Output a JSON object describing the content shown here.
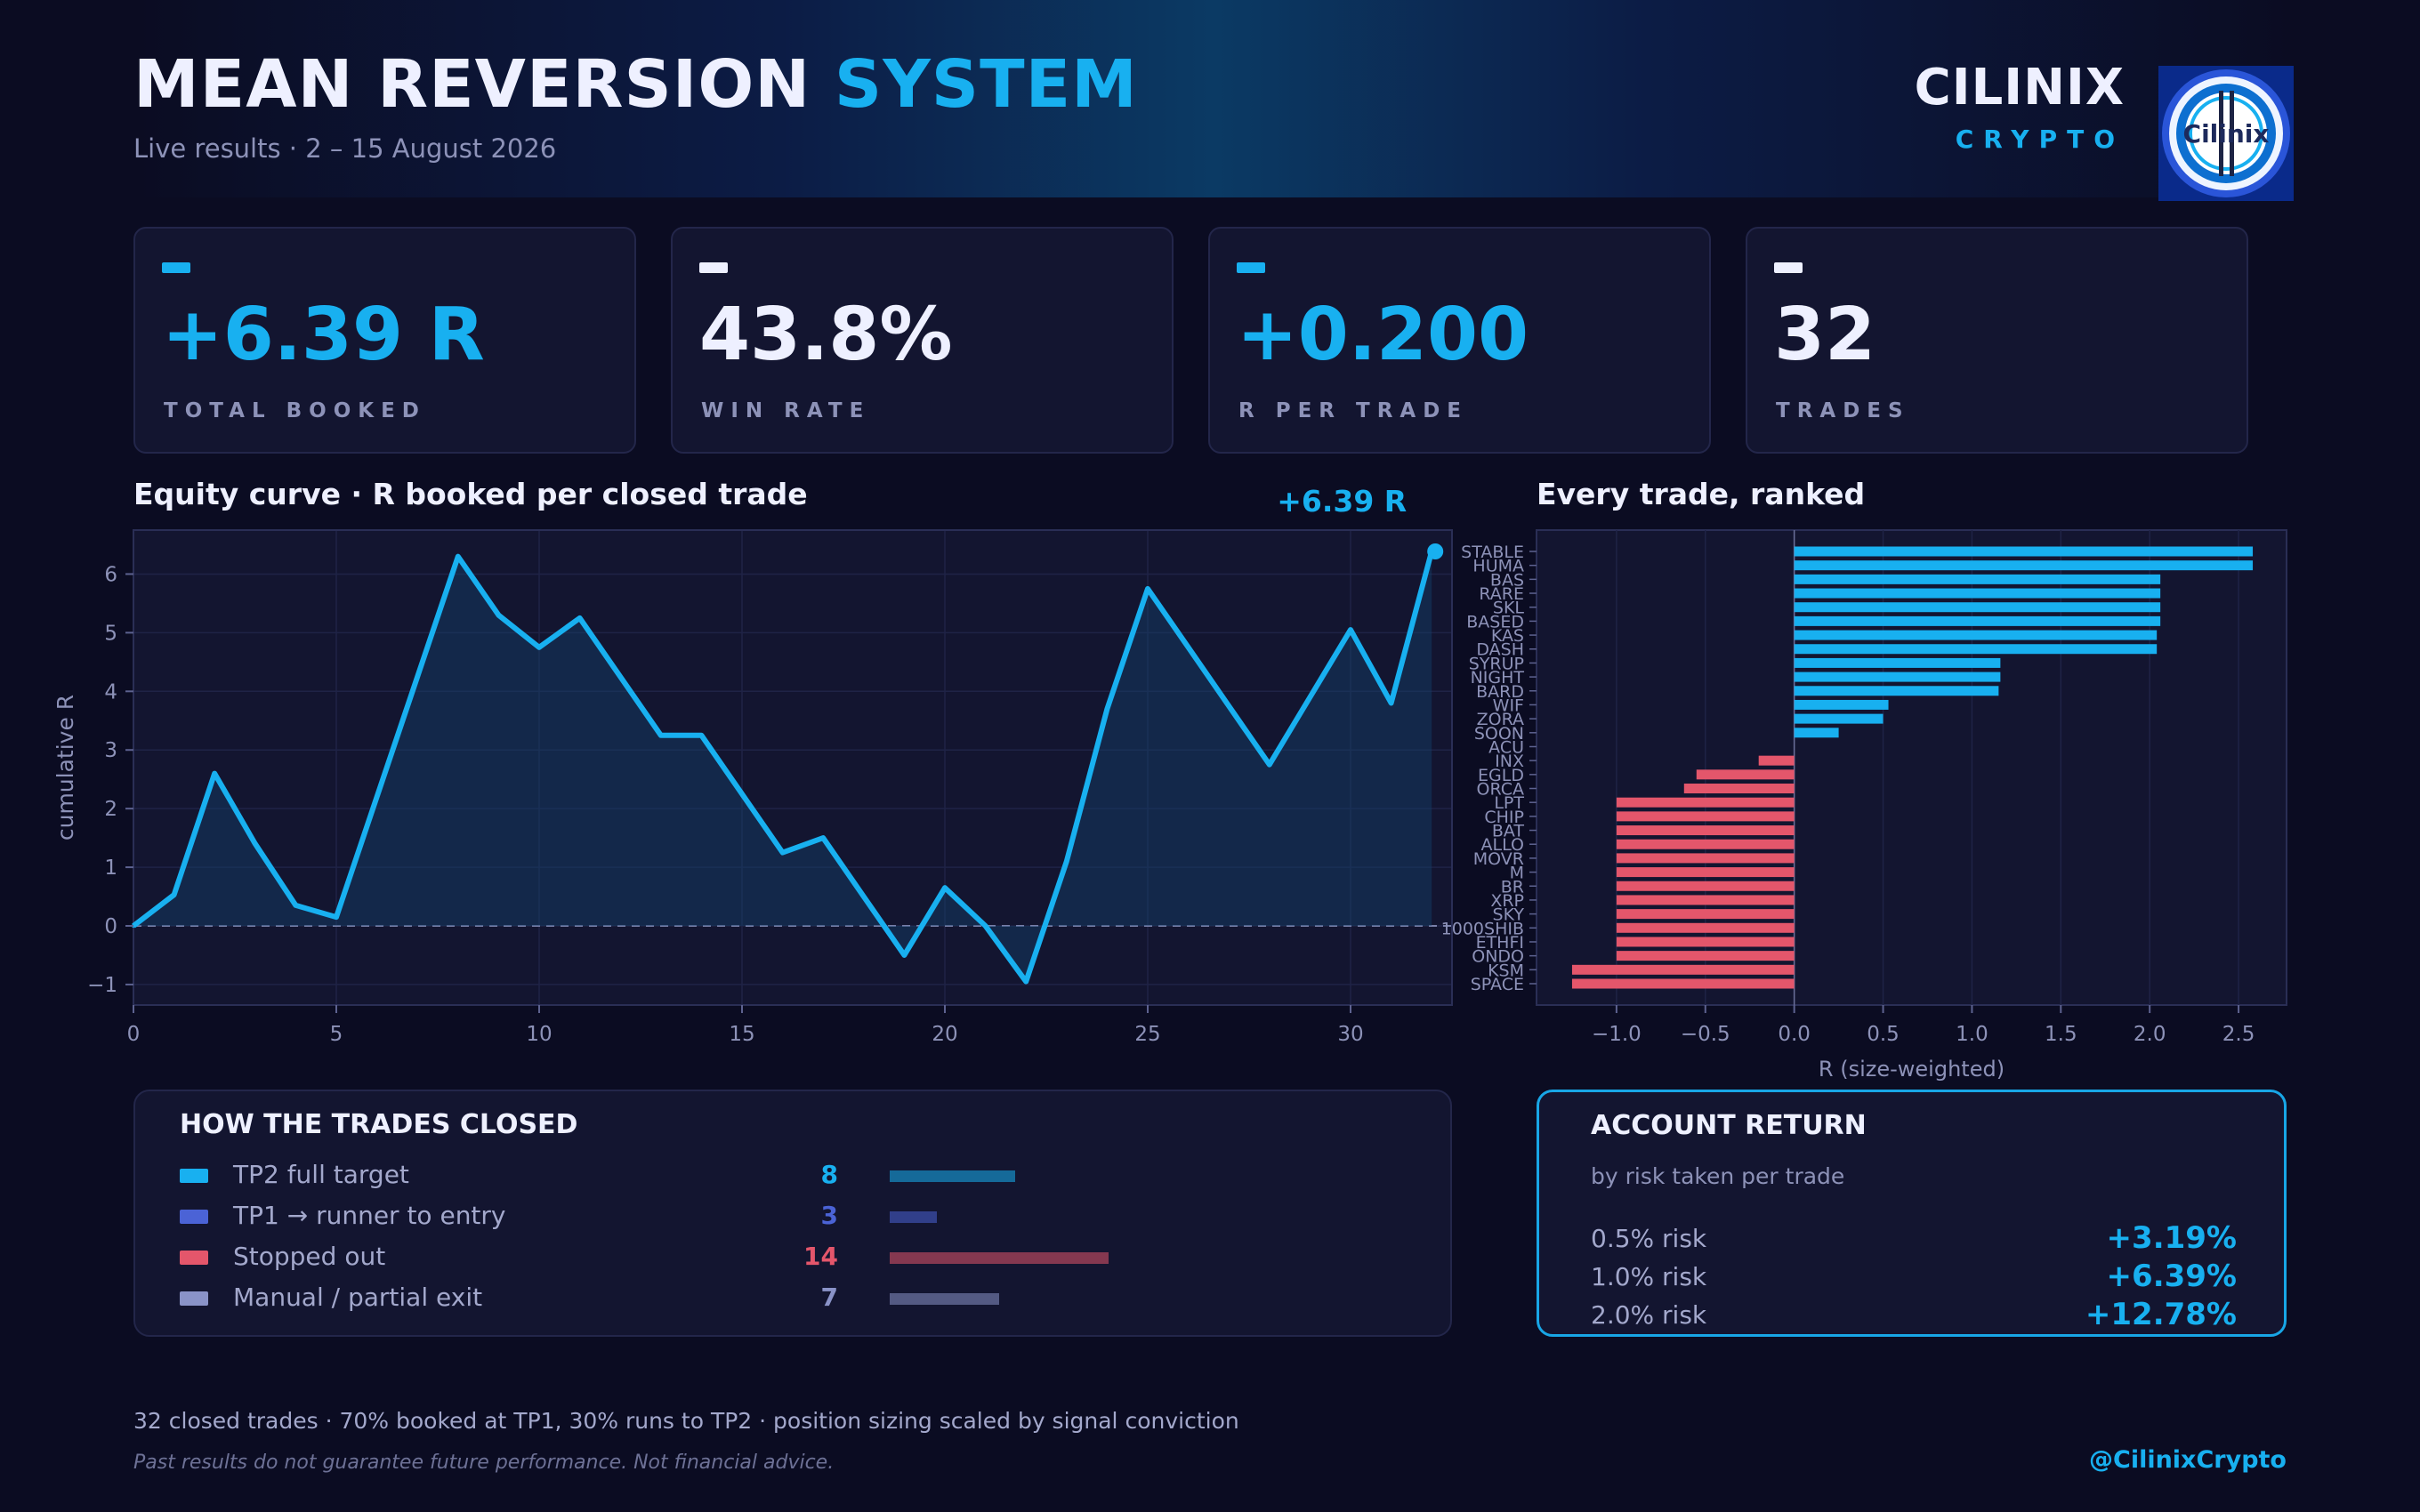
{
  "header": {
    "title_part1": "MEAN REVERSION",
    "title_part2": "SYSTEM",
    "subtitle": "Live results  ·  2 – 15 August 2026",
    "brand_name": "CILINIX",
    "brand_sub": "CRYPTO",
    "logo_text": "Cilinix"
  },
  "kpis": [
    {
      "value": "+6.39 R",
      "label": "TOTAL BOOKED",
      "color": "#18b0f0"
    },
    {
      "value": "43.8%",
      "label": "WIN RATE",
      "color": "#eef0ff"
    },
    {
      "value": "+0.200",
      "label": "R PER TRADE",
      "color": "#18b0f0"
    },
    {
      "value": "32",
      "label": "TRADES",
      "color": "#eef0ff"
    }
  ],
  "colors": {
    "accent": "#18b0f0",
    "loss": "#e4566b",
    "runner": "#4b63d6",
    "manual": "#8a93c8",
    "panel": "#131530",
    "background": "#0b0c22"
  },
  "chart_data": [
    {
      "type": "line",
      "title": "Equity curve  ·  R booked per closed trade",
      "ylabel": "cumulative R",
      "xlabel": "",
      "x": [
        0,
        1,
        2,
        3,
        4,
        5,
        6,
        7,
        8,
        9,
        10,
        11,
        12,
        13,
        14,
        15,
        16,
        17,
        18,
        19,
        20,
        21,
        22,
        23,
        24,
        25,
        26,
        27,
        28,
        29,
        30,
        31,
        32
      ],
      "y": [
        0,
        0.53,
        2.6,
        1.4,
        0.35,
        0.15,
        2.2,
        4.25,
        6.3,
        5.3,
        4.75,
        5.25,
        4.25,
        3.25,
        3.25,
        2.25,
        1.25,
        1.5,
        0.5,
        -0.5,
        0.65,
        0.0,
        -0.95,
        1.1,
        3.7,
        5.75,
        4.75,
        3.75,
        2.75,
        3.9,
        5.05,
        3.8,
        6.39
      ],
      "xlim": [
        0,
        32.5
      ],
      "ylim": [
        -1.35,
        6.75
      ],
      "xticks": [
        0,
        5,
        10,
        15,
        20,
        25,
        30
      ],
      "yticks": [
        -1,
        0,
        1,
        2,
        3,
        4,
        5,
        6
      ],
      "end_label": "+6.39 R",
      "zero_line": true,
      "grid": true
    },
    {
      "type": "bar",
      "orientation": "horizontal",
      "title": "Every trade, ranked",
      "xlabel": "R (size-weighted)",
      "ylabel": "",
      "categories": [
        "STABLE",
        "HUMA",
        "BAS",
        "RARE",
        "SKL",
        "BASED",
        "KAS",
        "DASH",
        "SYRUP",
        "NIGHT",
        "BARD",
        "WIF",
        "ZORA",
        "SOON",
        "ACU",
        "INX",
        "EGLD",
        "ORCA",
        "LPT",
        "CHIP",
        "BAT",
        "ALLO",
        "MOVR",
        "M",
        "BR",
        "XRP",
        "SKY",
        "1000SHIB",
        "ETHFI",
        "ONDO",
        "KSM",
        "SPACE"
      ],
      "values": [
        2.58,
        2.58,
        2.06,
        2.06,
        2.06,
        2.06,
        2.04,
        2.04,
        1.16,
        1.16,
        1.15,
        0.53,
        0.5,
        0.25,
        0.0,
        -0.2,
        -0.55,
        -0.62,
        -1.0,
        -1.0,
        -1.0,
        -1.0,
        -1.0,
        -1.0,
        -1.0,
        -1.0,
        -1.0,
        -1.0,
        -1.0,
        -1.0,
        -1.25,
        -1.25
      ],
      "xlim": [
        -1.45,
        2.77
      ],
      "xticks": [
        -1.0,
        -0.5,
        0.0,
        0.5,
        1.0,
        1.5,
        2.0,
        2.5
      ],
      "xtick_labels": [
        "−1.0",
        "−0.5",
        "0.0",
        "0.5",
        "1.0",
        "1.5",
        "2.0",
        "2.5"
      ],
      "grid": true
    }
  ],
  "how_closed": {
    "title": "HOW THE TRADES CLOSED",
    "rows": [
      {
        "label": "TP2 full target",
        "count": "8",
        "n": 8,
        "color": "#18b0f0"
      },
      {
        "label": "TP1 → runner to entry",
        "count": "3",
        "n": 3,
        "color": "#4b63d6"
      },
      {
        "label": "Stopped out",
        "count": "14",
        "n": 14,
        "color": "#e4566b"
      },
      {
        "label": "Manual / partial exit",
        "count": "7",
        "n": 7,
        "color": "#8a93c8"
      }
    ]
  },
  "account_return": {
    "title": "ACCOUNT RETURN",
    "subtitle": "by risk taken per trade",
    "rows": [
      {
        "risk": "0.5% risk",
        "ret": "+3.19%"
      },
      {
        "risk": "1.0% risk",
        "ret": "+6.39%"
      },
      {
        "risk": "2.0% risk",
        "ret": "+12.78%"
      }
    ]
  },
  "footer": {
    "note": "32 closed trades  ·  70% booked at TP1, 30% runs to TP2  ·  position sizing scaled by signal conviction",
    "disclaimer": "Past results do not guarantee future performance. Not financial advice.",
    "handle": "@CilinixCrypto"
  }
}
